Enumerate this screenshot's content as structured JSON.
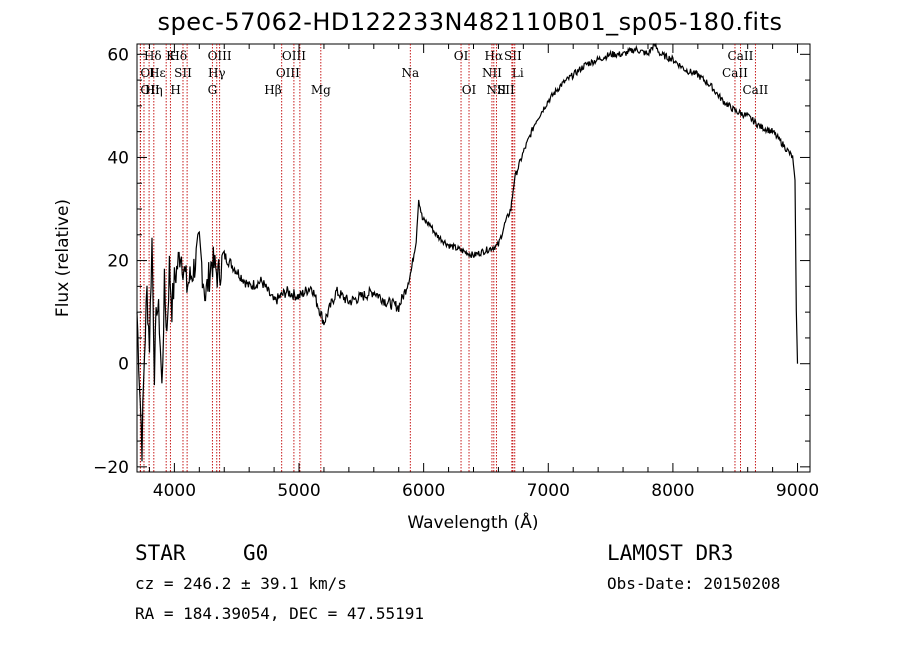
{
  "chart_data": {
    "type": "line",
    "title": "spec-57062-HD122233N482110B01_sp05-180.fits",
    "xlabel": "Wavelength (Å)",
    "ylabel": "Flux (relative)",
    "xlim": [
      3700,
      9100
    ],
    "ylim": [
      -21,
      62
    ],
    "xticks": [
      4000,
      5000,
      6000,
      7000,
      8000,
      9000
    ],
    "yticks": [
      -20,
      0,
      20,
      40,
      60
    ],
    "xtick_labels": [
      "4000",
      "5000",
      "6000",
      "7000",
      "8000",
      "9000"
    ],
    "ytick_labels": [
      "−20",
      "0",
      "20",
      "40",
      "60"
    ],
    "series": [
      {
        "name": "flux",
        "points": [
          [
            3700,
            10
          ],
          [
            3720,
            -3
          ],
          [
            3740,
            -16
          ],
          [
            3760,
            2
          ],
          [
            3780,
            14
          ],
          [
            3800,
            4
          ],
          [
            3820,
            24
          ],
          [
            3840,
            -1
          ],
          [
            3860,
            12
          ],
          [
            3880,
            8
          ],
          [
            3900,
            -5
          ],
          [
            3920,
            15
          ],
          [
            3940,
            6
          ],
          [
            3960,
            19
          ],
          [
            3980,
            11
          ],
          [
            4000,
            16
          ],
          [
            4050,
            22
          ],
          [
            4100,
            15
          ],
          [
            4150,
            18
          ],
          [
            4200,
            23
          ],
          [
            4250,
            13
          ],
          [
            4300,
            20
          ],
          [
            4350,
            17
          ],
          [
            4400,
            21
          ],
          [
            4500,
            18
          ],
          [
            4600,
            15
          ],
          [
            4700,
            16
          ],
          [
            4800,
            12
          ],
          [
            4900,
            14
          ],
          [
            5000,
            13
          ],
          [
            5100,
            15
          ],
          [
            5200,
            8
          ],
          [
            5300,
            14
          ],
          [
            5400,
            12
          ],
          [
            5500,
            13
          ],
          [
            5600,
            14
          ],
          [
            5700,
            12
          ],
          [
            5800,
            11
          ],
          [
            5850,
            14
          ],
          [
            5900,
            18
          ],
          [
            5940,
            24
          ],
          [
            5960,
            32
          ],
          [
            5990,
            28
          ],
          [
            6050,
            27
          ],
          [
            6100,
            25
          ],
          [
            6200,
            23
          ],
          [
            6300,
            22
          ],
          [
            6400,
            21
          ],
          [
            6500,
            22
          ],
          [
            6600,
            23
          ],
          [
            6650,
            27
          ],
          [
            6700,
            30
          ],
          [
            6730,
            36
          ],
          [
            6800,
            41
          ],
          [
            6900,
            47
          ],
          [
            7000,
            51
          ],
          [
            7100,
            54
          ],
          [
            7200,
            56
          ],
          [
            7300,
            58
          ],
          [
            7400,
            59
          ],
          [
            7500,
            60
          ],
          [
            7600,
            60
          ],
          [
            7700,
            61
          ],
          [
            7800,
            60
          ],
          [
            7850,
            62
          ],
          [
            7900,
            60
          ],
          [
            8000,
            59
          ],
          [
            8100,
            57
          ],
          [
            8200,
            56
          ],
          [
            8300,
            54
          ],
          [
            8400,
            51
          ],
          [
            8500,
            49
          ],
          [
            8600,
            48
          ],
          [
            8700,
            46
          ],
          [
            8800,
            45
          ],
          [
            8900,
            42
          ],
          [
            8960,
            40
          ],
          [
            8980,
            35
          ],
          [
            8990,
            10
          ],
          [
            9000,
            0
          ]
        ]
      }
    ],
    "line_markers": [
      {
        "label": "Hδ",
        "wl": 3756,
        "row": 0,
        "align": "start"
      },
      {
        "label": "K",
        "wl": 3934,
        "row": 0,
        "align": "start"
      },
      {
        "label": "Hδ",
        "wl": 4102,
        "row": 0,
        "align": "end"
      },
      {
        "label": "OIII",
        "wl": 4363,
        "row": 0,
        "align": "middle"
      },
      {
        "label": "OIII",
        "wl": 4959,
        "row": 0,
        "align": "middle"
      },
      {
        "label": "OI",
        "wl": 6300,
        "row": 0,
        "align": "middle"
      },
      {
        "label": "Hα",
        "wl": 6563,
        "row": 0,
        "align": "middle"
      },
      {
        "label": "SII",
        "wl": 6716,
        "row": 0,
        "align": "middle"
      },
      {
        "label": "CaII",
        "wl": 8542,
        "row": 0,
        "align": "middle"
      },
      {
        "label": "OI",
        "wl": 3727,
        "row": 1,
        "align": "start"
      },
      {
        "label": "Hε",
        "wl": 3797,
        "row": 1,
        "align": "start"
      },
      {
        "label": "SII",
        "wl": 4069,
        "row": 1,
        "align": "middle"
      },
      {
        "label": "Hγ",
        "wl": 4340,
        "row": 1,
        "align": "middle"
      },
      {
        "label": "OIII",
        "wl": 5007,
        "row": 1,
        "align": "end"
      },
      {
        "label": "Na",
        "wl": 5893,
        "row": 1,
        "align": "middle"
      },
      {
        "label": "NII",
        "wl": 6548,
        "row": 1,
        "align": "middle"
      },
      {
        "label": "Li",
        "wl": 6708,
        "row": 1,
        "align": "start"
      },
      {
        "label": "CaII",
        "wl": 8498,
        "row": 1,
        "align": "middle"
      },
      {
        "label": "OII",
        "wl": 3727,
        "row": 2,
        "align": "start"
      },
      {
        "label": "Hη",
        "wl": 3835,
        "row": 2,
        "align": "middle"
      },
      {
        "label": "H",
        "wl": 3968,
        "row": 2,
        "align": "start"
      },
      {
        "label": "G",
        "wl": 4305,
        "row": 2,
        "align": "middle"
      },
      {
        "label": "Hβ",
        "wl": 4861,
        "row": 2,
        "align": "end"
      },
      {
        "label": "Mg",
        "wl": 5175,
        "row": 2,
        "align": "middle"
      },
      {
        "label": "OI",
        "wl": 6364,
        "row": 2,
        "align": "middle"
      },
      {
        "label": "NII",
        "wl": 6584,
        "row": 2,
        "align": "middle"
      },
      {
        "label": "SII",
        "wl": 6731,
        "row": 2,
        "align": "end"
      },
      {
        "label": "CaII",
        "wl": 8662,
        "row": 2,
        "align": "middle"
      }
    ],
    "marker_color": "#c00000"
  },
  "info": {
    "object_type": "STAR",
    "subclass": "G0",
    "survey": "LAMOST DR3",
    "velocity": "cz = 246.2 ± 39.1 km/s",
    "obs_date": "Obs-Date: 20150208",
    "coords": "RA = 184.39054, DEC =  47.55191"
  }
}
